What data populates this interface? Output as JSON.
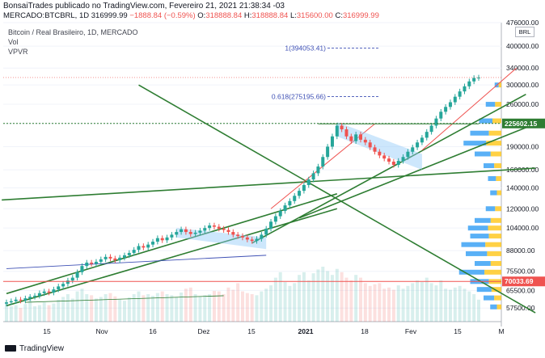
{
  "header": {
    "publisher_line": "BonsaiTrades publicado no TradingView.com, Fevereiro 21, 2021 21:38:34 -03",
    "symbol": "MERCADO:BTCBRL, 1D",
    "last": "316999.99",
    "change": "−1888.84 (−0.59%)",
    "ohlc": {
      "o_label": "O:",
      "o": "318888.84",
      "h_label": "H:",
      "h": "318888.84",
      "l_label": "L:",
      "l": "315600.00",
      "c_label": "C:",
      "c": "316999.99"
    }
  },
  "legend": {
    "title": "Bitcoin / Real Brasileiro, 1D, MERCADO",
    "vol": "Vol",
    "vpvr": "VPVR"
  },
  "currency_button": "BRL",
  "footer": {
    "brand": "TradingView"
  },
  "colors": {
    "up": "#26a69a",
    "down": "#ef5350",
    "trend": "#2e7d32",
    "fib": "#3f51b5",
    "pattern": "#90caf9"
  },
  "chart_data": {
    "type": "candlestick",
    "yscale": "log",
    "ylim": [
      52000,
      476000
    ],
    "y_ticks": [
      "476000.00",
      "400000.00",
      "340000.00",
      "300000.00",
      "260000.00",
      "225602.15",
      "190000.00",
      "160000.00",
      "140000.00",
      "120000.00",
      "104000.00",
      "88000.00",
      "75500.00",
      "65500.00",
      "57500.00"
    ],
    "x_ticks": [
      "15",
      "Nov",
      "16",
      "Dez",
      "15",
      "2021",
      "18",
      "Fev",
      "15",
      "M"
    ],
    "price_labels": [
      {
        "value": 225602.15,
        "text": "225602.15",
        "color": "#2e7d32"
      },
      {
        "value": 70033.69,
        "text": "70033.69",
        "color": "#ef5350"
      }
    ],
    "fib_levels": [
      {
        "text": "1(394053.41)",
        "value": 394053
      },
      {
        "text": "0.618(275195.66)",
        "value": 275196
      }
    ],
    "candles_close": [
      60000,
      60500,
      61200,
      60800,
      61800,
      62500,
      63000,
      64200,
      65000,
      64500,
      66000,
      67500,
      68800,
      70500,
      72000,
      75000,
      78500,
      80500,
      79800,
      81000,
      82500,
      84000,
      83000,
      82000,
      83500,
      85000,
      86500,
      88500,
      91000,
      90000,
      92000,
      94000,
      96500,
      95000,
      97000,
      99000,
      101000,
      103000,
      101000,
      99500,
      100500,
      102000,
      104000,
      106000,
      105000,
      103500,
      102500,
      101000,
      99000,
      98000,
      97000,
      95500,
      94500,
      96000,
      99000,
      103500,
      109000,
      113500,
      118000,
      123000,
      127000,
      132000,
      137000,
      143000,
      149000,
      156000,
      164000,
      176000,
      190000,
      205000,
      222000,
      216000,
      205000,
      198000,
      208000,
      200000,
      196000,
      189000,
      183000,
      178000,
      174000,
      170000,
      166000,
      171000,
      176000,
      183000,
      189000,
      196000,
      203000,
      212000,
      222000,
      234000,
      246000,
      255000,
      264000,
      275000,
      286000,
      297000,
      308000,
      316000,
      317000
    ],
    "volumes": [
      0.35,
      0.28,
      0.3,
      0.25,
      0.32,
      0.4,
      0.28,
      0.3,
      0.35,
      0.3,
      0.33,
      0.4,
      0.45,
      0.5,
      0.42,
      0.55,
      0.6,
      0.5,
      0.48,
      0.42,
      0.45,
      0.5,
      0.52,
      0.46,
      0.4,
      0.38,
      0.44,
      0.5,
      0.55,
      0.48,
      0.5,
      0.47,
      0.52,
      0.55,
      0.5,
      0.48,
      0.45,
      0.53,
      0.6,
      0.62,
      0.5,
      0.46,
      0.48,
      0.5,
      0.56,
      0.55,
      0.5,
      0.62,
      0.58,
      0.7,
      0.55,
      0.52,
      0.5,
      0.48,
      0.55,
      0.6,
      0.66,
      0.8,
      0.9,
      0.72,
      0.65,
      0.7,
      0.85,
      0.9,
      0.75,
      0.88,
      0.95,
      1.0,
      0.92,
      0.85,
      0.96,
      0.9,
      0.8,
      0.75,
      0.85,
      0.8,
      0.7,
      0.65,
      0.68,
      0.7,
      0.6,
      0.62,
      0.58,
      0.66,
      0.6,
      0.65,
      0.7,
      0.75,
      0.72,
      0.8,
      0.7,
      0.66,
      0.75,
      0.6,
      0.58,
      0.62,
      0.65,
      0.6,
      0.55,
      0.5,
      0.4
    ]
  }
}
